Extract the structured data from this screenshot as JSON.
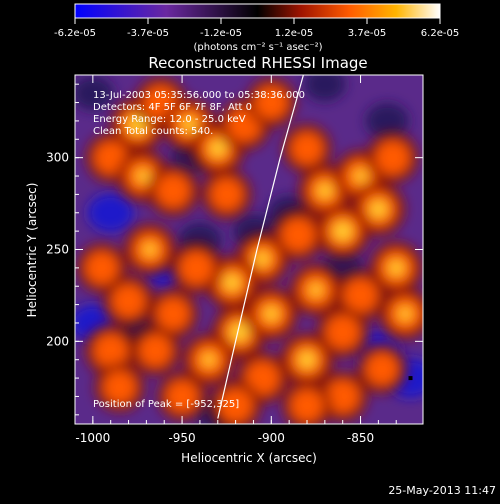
{
  "colorbar": {
    "tick_labels": [
      "-6.2e-05",
      "-3.7e-05",
      "-1.2e-05",
      "1.2e-05",
      "3.7e-05",
      "6.2e-05"
    ],
    "unit_label": "(photons cm⁻² s⁻¹ asec⁻²)",
    "colors": [
      "#0000ff",
      "#6a28a0",
      "#000000",
      "#a01400",
      "#ff5a00",
      "#ffb400",
      "#ffffff"
    ]
  },
  "chart_data": {
    "type": "heatmap",
    "title": "Reconstructed RHESSI Image",
    "xlabel": "Heliocentric X (arcsec)",
    "ylabel": "Heliocentric Y (arcsec)",
    "xlim": [
      -1010,
      -815
    ],
    "ylim": [
      155,
      345
    ],
    "x_ticks": [
      -1000,
      -950,
      -900,
      -850
    ],
    "x_tick_labels": [
      "-1000",
      "-950",
      "-900",
      "-850"
    ],
    "y_ticks": [
      200,
      250,
      300
    ],
    "y_tick_labels": [
      "200",
      "250",
      "300"
    ],
    "annotations": [
      "13-Jul-2003 05:35:56.000 to 05:38:36.000",
      "Detectors: 4F 5F 6F 7F 8F, Att 0",
      "Energy Range: 12.0 - 25.0 keV",
      "Clean     Total counts: 540."
    ],
    "peak_label": "Position of Peak = [-952,325]",
    "peak": [
      -952,
      325
    ],
    "limb_curve": [
      [
        -930,
        158
      ],
      [
        -920,
        200
      ],
      [
        -908,
        250
      ],
      [
        -895,
        300
      ],
      [
        -882,
        345
      ]
    ],
    "hot_spots": [
      {
        "x": -975,
        "y": 318,
        "v": 0.9
      },
      {
        "x": -962,
        "y": 330,
        "v": 0.7
      },
      {
        "x": -946,
        "y": 318,
        "v": 0.8
      },
      {
        "x": -930,
        "y": 305,
        "v": 0.85
      },
      {
        "x": -915,
        "y": 318,
        "v": 0.7
      },
      {
        "x": -900,
        "y": 330,
        "v": 0.6
      },
      {
        "x": -990,
        "y": 300,
        "v": 0.6
      },
      {
        "x": -972,
        "y": 290,
        "v": 0.75
      },
      {
        "x": -955,
        "y": 282,
        "v": 0.7
      },
      {
        "x": -925,
        "y": 280,
        "v": 0.6
      },
      {
        "x": -880,
        "y": 305,
        "v": 0.55
      },
      {
        "x": -870,
        "y": 282,
        "v": 0.8
      },
      {
        "x": -850,
        "y": 290,
        "v": 0.75
      },
      {
        "x": -832,
        "y": 300,
        "v": 0.7
      },
      {
        "x": -840,
        "y": 272,
        "v": 0.85
      },
      {
        "x": -860,
        "y": 260,
        "v": 0.9
      },
      {
        "x": -885,
        "y": 258,
        "v": 0.7
      },
      {
        "x": -905,
        "y": 245,
        "v": 0.8
      },
      {
        "x": -922,
        "y": 232,
        "v": 0.85
      },
      {
        "x": -942,
        "y": 240,
        "v": 0.7
      },
      {
        "x": -968,
        "y": 250,
        "v": 0.75
      },
      {
        "x": -995,
        "y": 240,
        "v": 0.6
      },
      {
        "x": -980,
        "y": 222,
        "v": 0.65
      },
      {
        "x": -955,
        "y": 215,
        "v": 0.6
      },
      {
        "x": -918,
        "y": 205,
        "v": 0.9
      },
      {
        "x": -900,
        "y": 215,
        "v": 0.8
      },
      {
        "x": -875,
        "y": 228,
        "v": 0.75
      },
      {
        "x": -850,
        "y": 225,
        "v": 0.7
      },
      {
        "x": -830,
        "y": 240,
        "v": 0.8
      },
      {
        "x": -825,
        "y": 215,
        "v": 0.75
      },
      {
        "x": -860,
        "y": 205,
        "v": 0.7
      },
      {
        "x": -880,
        "y": 190,
        "v": 0.85
      },
      {
        "x": -905,
        "y": 180,
        "v": 0.7
      },
      {
        "x": -935,
        "y": 190,
        "v": 0.75
      },
      {
        "x": -965,
        "y": 195,
        "v": 0.6
      },
      {
        "x": -990,
        "y": 195,
        "v": 0.7
      },
      {
        "x": -985,
        "y": 175,
        "v": 0.6
      },
      {
        "x": -950,
        "y": 170,
        "v": 0.55
      },
      {
        "x": -920,
        "y": 165,
        "v": 0.7
      },
      {
        "x": -860,
        "y": 170,
        "v": 0.65
      },
      {
        "x": -838,
        "y": 185,
        "v": 0.6
      },
      {
        "x": -880,
        "y": 165,
        "v": 0.6
      }
    ],
    "cold_spots": [
      {
        "x": -990,
        "y": 270,
        "v": 0.9
      },
      {
        "x": -960,
        "y": 240,
        "v": 0.8
      },
      {
        "x": -940,
        "y": 255,
        "v": 0.7
      },
      {
        "x": -1000,
        "y": 210,
        "v": 0.8
      },
      {
        "x": -930,
        "y": 160,
        "v": 0.7
      },
      {
        "x": -840,
        "y": 195,
        "v": 0.9
      },
      {
        "x": -822,
        "y": 180,
        "v": 1.0
      },
      {
        "x": -835,
        "y": 320,
        "v": 0.7
      },
      {
        "x": -870,
        "y": 340,
        "v": 0.6
      },
      {
        "x": -1000,
        "y": 335,
        "v": 0.6
      },
      {
        "x": -945,
        "y": 300,
        "v": 0.5
      },
      {
        "x": -890,
        "y": 270,
        "v": 0.6
      },
      {
        "x": -860,
        "y": 240,
        "v": 0.5
      },
      {
        "x": -910,
        "y": 260,
        "v": 0.55
      },
      {
        "x": -975,
        "y": 205,
        "v": 0.6
      }
    ]
  },
  "footer": {
    "timestamp": "25-May-2013 11:47"
  }
}
